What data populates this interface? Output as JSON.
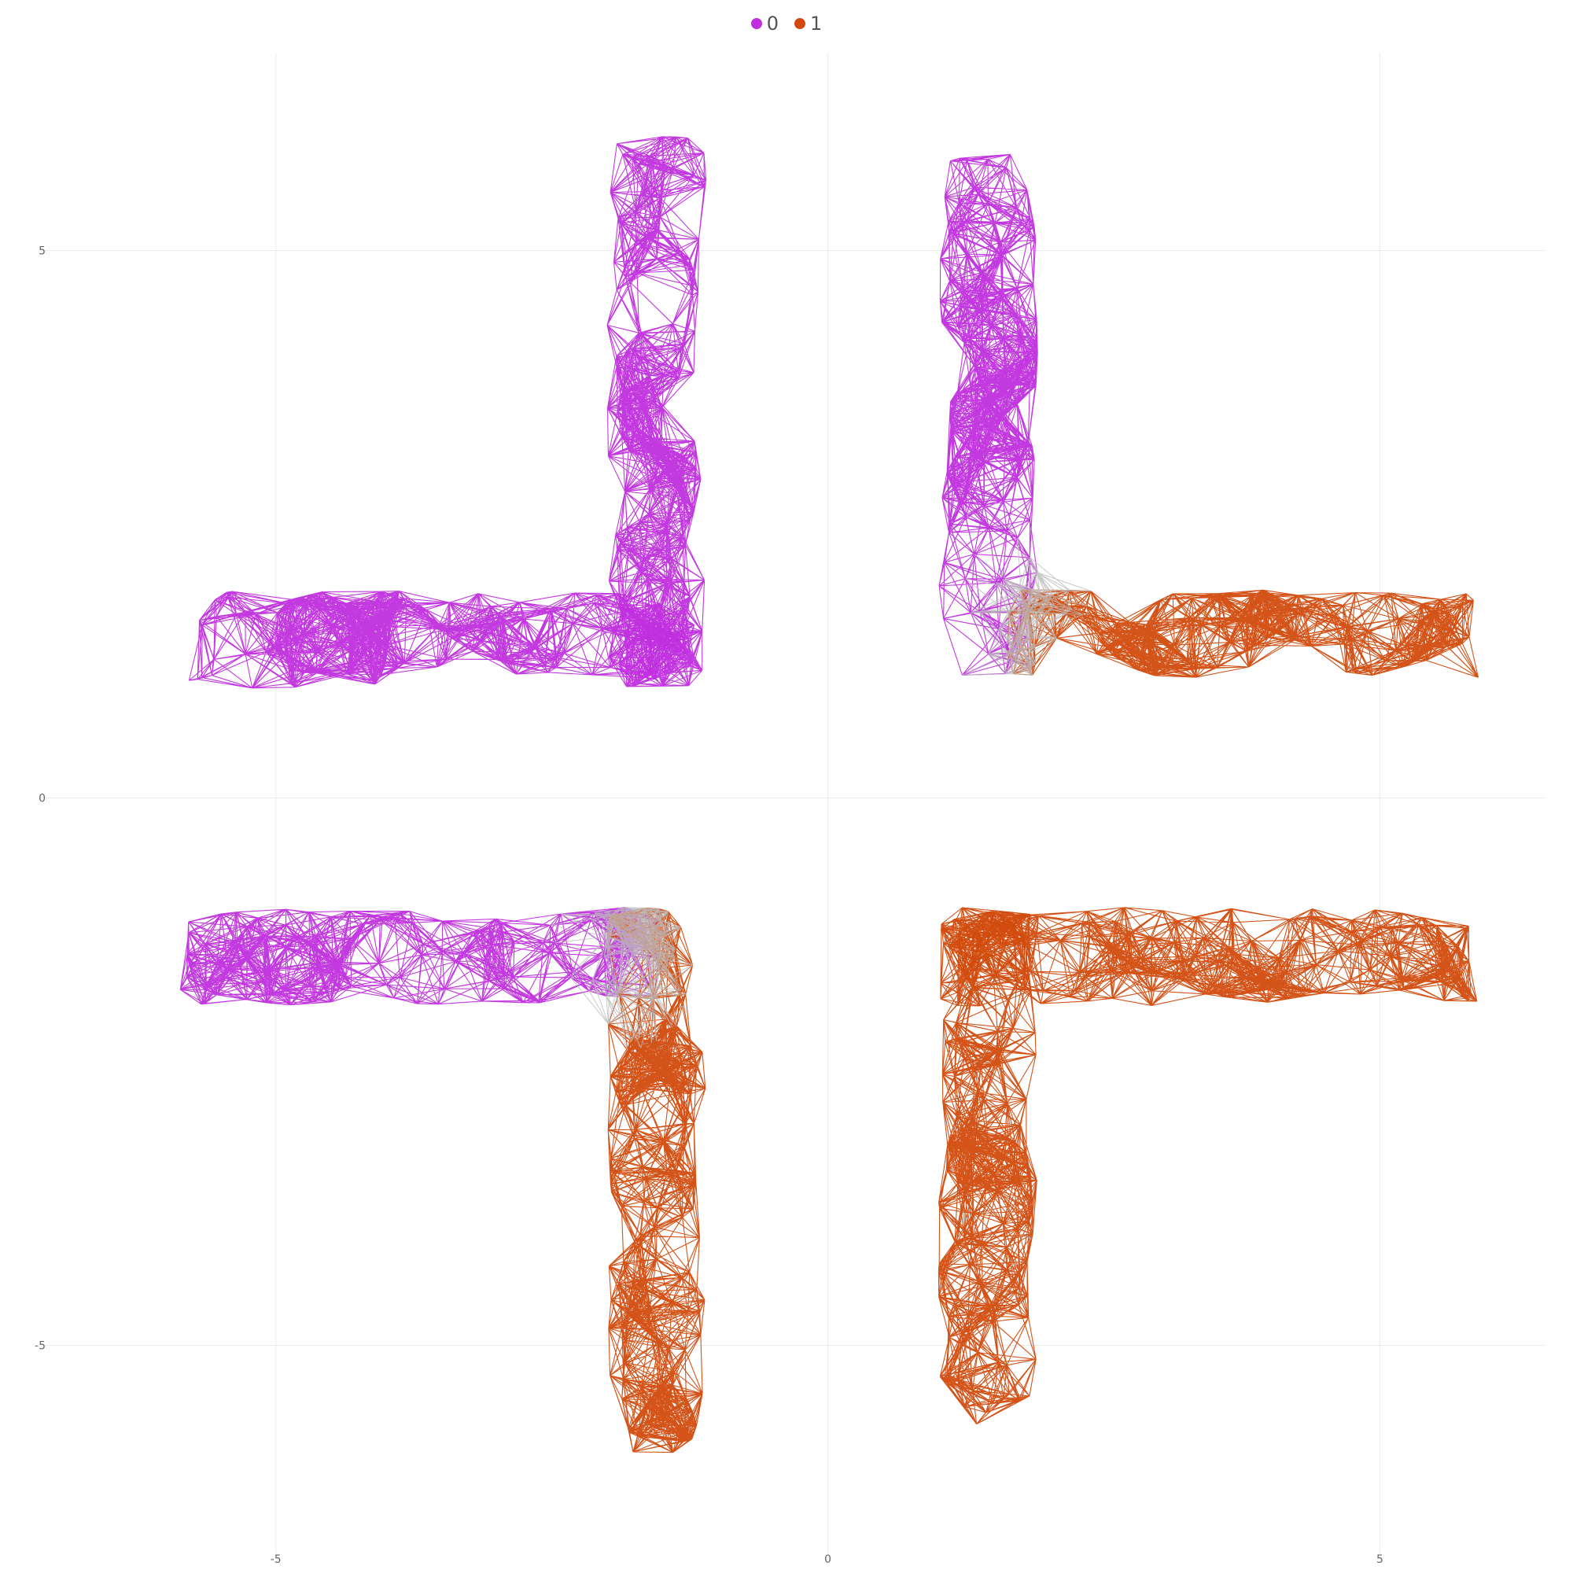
{
  "chart_data": {
    "type": "scatter",
    "title": "",
    "xlabel": "",
    "ylabel": "",
    "xlim": [
      -7,
      6.5
    ],
    "ylim": [
      -6.9,
      6.8
    ],
    "grid": true,
    "legend_position": "top-center",
    "x_ticks": [
      -5,
      0,
      5
    ],
    "y_ticks": [
      5,
      0,
      -5
    ],
    "tick_labels": {
      "x": [
        "-5",
        "0",
        "5"
      ],
      "y": [
        "5",
        "0",
        "-5"
      ]
    },
    "edge_color_between_groups": "#bbbbbb",
    "series": [
      {
        "name": "0",
        "color": "#c02ede",
        "segments": [
          {
            "region": "top-left horizontal arm",
            "x": [
              -5.8,
              -1.2
            ],
            "y": [
              1.0,
              1.9
            ]
          },
          {
            "region": "top-left vertical arm",
            "x": [
              -2.0,
              -1.1
            ],
            "y": [
              1.0,
              6.1
            ]
          },
          {
            "region": "top-right vertical arm",
            "x": [
              1.0,
              1.9
            ],
            "y": [
              1.1,
              5.9
            ]
          },
          {
            "region": "bottom-left horizontal arm",
            "x": [
              -5.9,
              -1.5
            ],
            "y": [
              -1.9,
              -1.0
            ]
          }
        ]
      },
      {
        "name": "1",
        "color": "#d14a0c",
        "segments": [
          {
            "region": "top-right horizontal arm",
            "x": [
              1.6,
              5.9
            ],
            "y": [
              1.1,
              1.9
            ]
          },
          {
            "region": "bottom-left vertical arm",
            "x": [
              -2.0,
              -1.1
            ],
            "y": [
              -6.0,
              -1.0
            ]
          },
          {
            "region": "bottom-right horizontal arm",
            "x": [
              1.0,
              5.9
            ],
            "y": [
              -1.9,
              -1.0
            ]
          },
          {
            "region": "bottom-right vertical arm",
            "x": [
              1.0,
              1.9
            ],
            "y": [
              -5.8,
              -1.0
            ]
          }
        ]
      }
    ]
  }
}
